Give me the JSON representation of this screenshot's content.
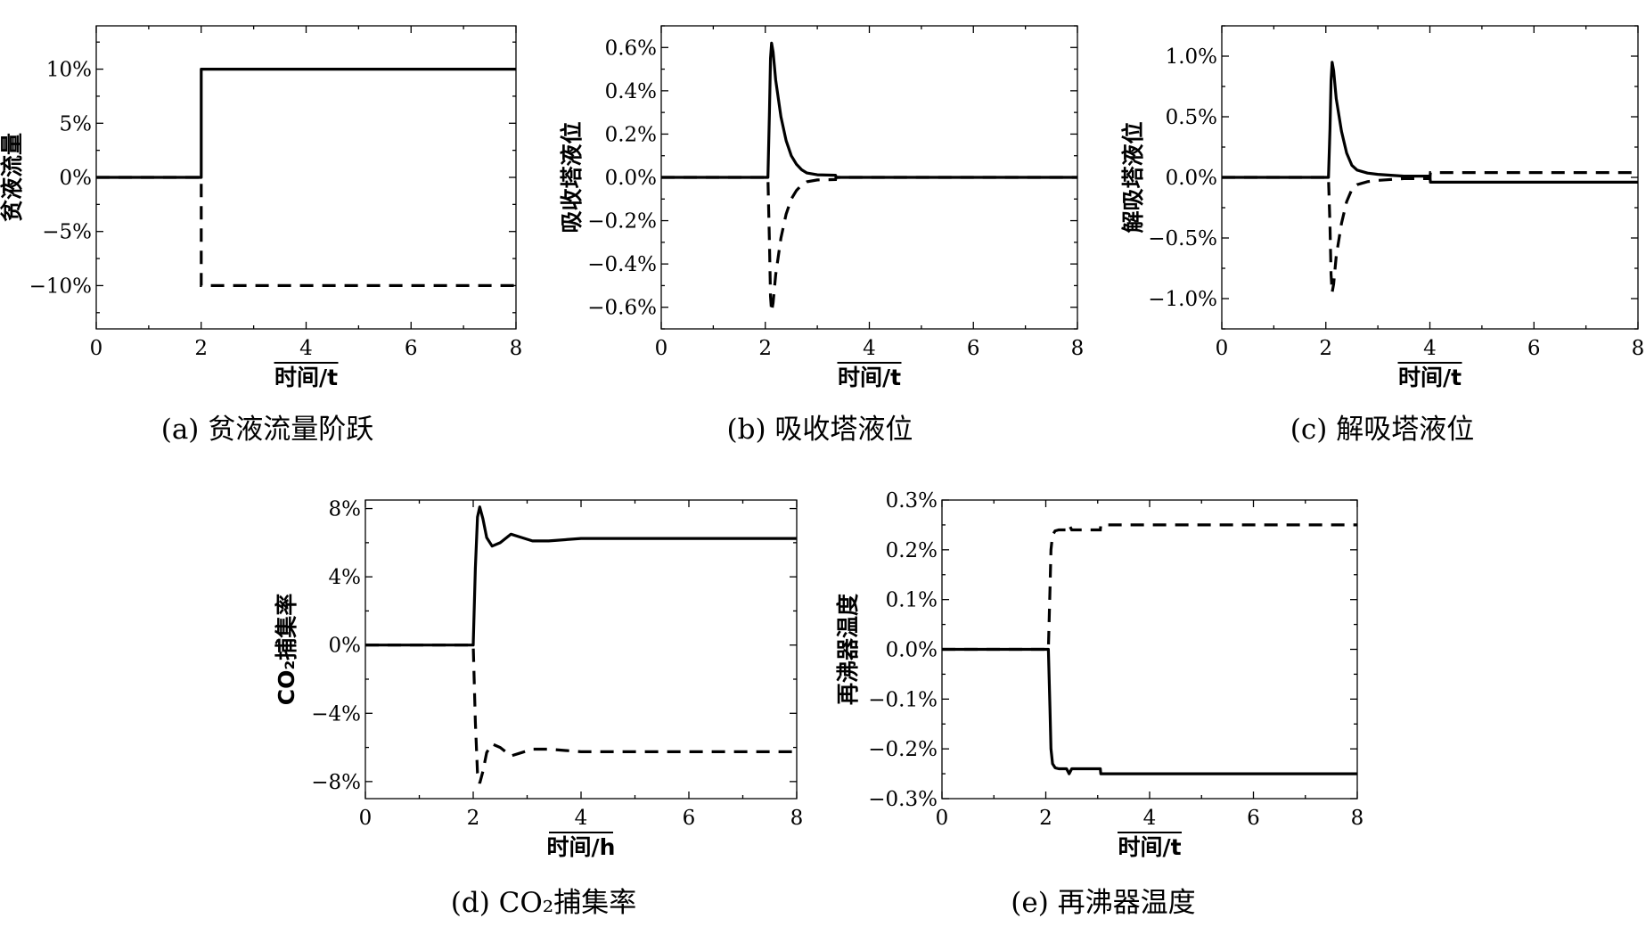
{
  "chart_data": [
    {
      "type": "line",
      "caption": "(a) 贫液流量阶跃",
      "xlabel": "时间/t",
      "ylabel": "贫液流量",
      "xlim": [
        0,
        8
      ],
      "ylim": [
        -14,
        14
      ],
      "x_ticks": [
        0,
        2,
        4,
        6,
        8
      ],
      "x_tick_labels": [
        "0",
        "2",
        "4",
        "6",
        "8"
      ],
      "y_ticks": [
        10,
        5,
        0,
        -5,
        -10
      ],
      "y_tick_labels": [
        "10%",
        "5%",
        "0%",
        "−5%",
        "−10%"
      ],
      "grid": false,
      "series": [
        {
          "style": "solid",
          "x": [
            0,
            2,
            2,
            8
          ],
          "y": [
            0,
            0,
            10,
            10
          ]
        },
        {
          "style": "dashed",
          "x": [
            0,
            2,
            2,
            8
          ],
          "y": [
            0,
            0,
            -10,
            -10
          ]
        }
      ]
    },
    {
      "type": "line",
      "caption": "(b) 吸收塔液位",
      "xlabel": "时间/t",
      "ylabel": "吸收塔液位",
      "xlim": [
        0,
        8
      ],
      "ylim": [
        -0.7,
        0.7
      ],
      "x_ticks": [
        0,
        2,
        4,
        6,
        8
      ],
      "x_tick_labels": [
        "0",
        "2",
        "4",
        "6",
        "8"
      ],
      "y_ticks": [
        0.6,
        0.4,
        0.2,
        0,
        -0.2,
        -0.4,
        -0.6
      ],
      "y_tick_labels": [
        "0.6%",
        "0.4%",
        "0.2%",
        "0.0%",
        "−0.2%",
        "−0.4%",
        "−0.6%"
      ],
      "grid": false,
      "series": [
        {
          "style": "solid",
          "x": [
            0,
            2.05,
            2.08,
            2.1,
            2.12,
            2.15,
            2.2,
            2.3,
            2.4,
            2.5,
            2.6,
            2.7,
            2.8,
            3.0,
            3.35,
            3.36,
            8
          ],
          "y": [
            0,
            0,
            0.3,
            0.55,
            0.62,
            0.58,
            0.45,
            0.28,
            0.17,
            0.1,
            0.06,
            0.035,
            0.02,
            0.012,
            0.01,
            0,
            0
          ]
        },
        {
          "style": "dashed",
          "x": [
            0,
            2.05,
            2.08,
            2.1,
            2.12,
            2.15,
            2.2,
            2.3,
            2.4,
            2.5,
            2.6,
            2.7,
            2.8,
            3.0,
            3.35,
            3.36,
            8
          ],
          "y": [
            0,
            0,
            -0.3,
            -0.55,
            -0.62,
            -0.58,
            -0.45,
            -0.28,
            -0.17,
            -0.1,
            -0.06,
            -0.035,
            -0.02,
            -0.012,
            -0.01,
            0,
            0
          ]
        }
      ]
    },
    {
      "type": "line",
      "caption": "(c) 解吸塔液位",
      "xlabel": "时间/t",
      "ylabel": "解吸塔液位",
      "xlim": [
        0,
        8
      ],
      "ylim": [
        -1.25,
        1.25
      ],
      "x_ticks": [
        0,
        2,
        4,
        6,
        8
      ],
      "x_tick_labels": [
        "0",
        "2",
        "4",
        "6",
        "8"
      ],
      "y_ticks": [
        1.0,
        0.5,
        0,
        -0.5,
        -1.0
      ],
      "y_tick_labels": [
        "1.0%",
        "0.5%",
        "0.0%",
        "−0.5%",
        "−1.0%"
      ],
      "grid": false,
      "series": [
        {
          "style": "solid",
          "x": [
            0,
            2.05,
            2.08,
            2.1,
            2.12,
            2.15,
            2.2,
            2.3,
            2.4,
            2.5,
            2.6,
            2.8,
            3.0,
            3.5,
            4.0,
            4.01,
            8
          ],
          "y": [
            0,
            0,
            0.4,
            0.8,
            0.95,
            0.88,
            0.65,
            0.38,
            0.2,
            0.1,
            0.06,
            0.035,
            0.025,
            0.01,
            0.01,
            -0.04,
            -0.04
          ]
        },
        {
          "style": "dashed",
          "x": [
            0,
            2.05,
            2.08,
            2.1,
            2.12,
            2.15,
            2.2,
            2.3,
            2.4,
            2.5,
            2.6,
            2.8,
            3.0,
            3.5,
            4.0,
            4.01,
            8
          ],
          "y": [
            0,
            0,
            -0.4,
            -0.8,
            -0.95,
            -0.88,
            -0.65,
            -0.38,
            -0.2,
            -0.1,
            -0.06,
            -0.035,
            -0.025,
            -0.01,
            -0.01,
            0.04,
            0.04
          ]
        }
      ]
    },
    {
      "type": "line",
      "caption": "(d) CO₂捕集率",
      "xlabel": "时间/h",
      "ylabel": "CO₂捕集率",
      "xlim": [
        0,
        8
      ],
      "ylim": [
        -9,
        8.5
      ],
      "x_ticks": [
        0,
        2,
        4,
        6,
        8
      ],
      "x_tick_labels": [
        "0",
        "2",
        "4",
        "6",
        "8"
      ],
      "y_ticks": [
        8,
        4,
        0,
        -4,
        -8
      ],
      "y_tick_labels": [
        "8%",
        "4%",
        "0%",
        "−4%",
        "−8%"
      ],
      "grid": false,
      "series": [
        {
          "style": "solid",
          "x": [
            0,
            2.0,
            2.04,
            2.08,
            2.12,
            2.18,
            2.25,
            2.35,
            2.5,
            2.7,
            2.9,
            3.1,
            3.4,
            4.0,
            8
          ],
          "y": [
            0,
            0,
            4.5,
            7.5,
            8.1,
            7.4,
            6.3,
            5.8,
            6.0,
            6.5,
            6.3,
            6.1,
            6.1,
            6.25,
            6.25
          ]
        },
        {
          "style": "dashed",
          "x": [
            0,
            2.0,
            2.04,
            2.08,
            2.12,
            2.18,
            2.25,
            2.35,
            2.5,
            2.7,
            2.9,
            3.1,
            3.4,
            4.0,
            8
          ],
          "y": [
            0,
            0,
            -4.5,
            -7.5,
            -8.1,
            -7.4,
            -6.3,
            -5.8,
            -6.0,
            -6.5,
            -6.3,
            -6.1,
            -6.1,
            -6.25,
            -6.25
          ]
        }
      ]
    },
    {
      "type": "line",
      "caption": "(e) 再沸器温度",
      "xlabel": "时间/t",
      "ylabel": "再沸器温度",
      "xlim": [
        0,
        8
      ],
      "ylim": [
        -0.3,
        0.3
      ],
      "x_ticks": [
        0,
        2,
        4,
        6,
        8
      ],
      "x_tick_labels": [
        "0",
        "2",
        "4",
        "6",
        "8"
      ],
      "y_ticks": [
        0.3,
        0.2,
        0.1,
        0,
        -0.1,
        -0.2,
        -0.3
      ],
      "y_tick_labels": [
        "0.3%",
        "0.2%",
        "0.1%",
        "0.0%",
        "−0.1%",
        "−0.2%",
        "−0.3%"
      ],
      "grid": false,
      "series": [
        {
          "style": "solid",
          "x": [
            0,
            2.05,
            2.08,
            2.1,
            2.13,
            2.18,
            2.25,
            2.4,
            2.45,
            2.5,
            2.55,
            3.05,
            3.06,
            8
          ],
          "y": [
            0,
            0,
            -0.12,
            -0.2,
            -0.23,
            -0.238,
            -0.24,
            -0.24,
            -0.25,
            -0.24,
            -0.24,
            -0.24,
            -0.25,
            -0.25
          ]
        },
        {
          "style": "dashed",
          "x": [
            0,
            2.05,
            2.08,
            2.1,
            2.13,
            2.18,
            2.25,
            2.4,
            2.45,
            2.5,
            2.55,
            3.05,
            3.06,
            8
          ],
          "y": [
            0,
            0,
            0.12,
            0.2,
            0.23,
            0.238,
            0.24,
            0.24,
            0.25,
            0.24,
            0.24,
            0.24,
            0.25,
            0.25
          ]
        }
      ]
    }
  ]
}
